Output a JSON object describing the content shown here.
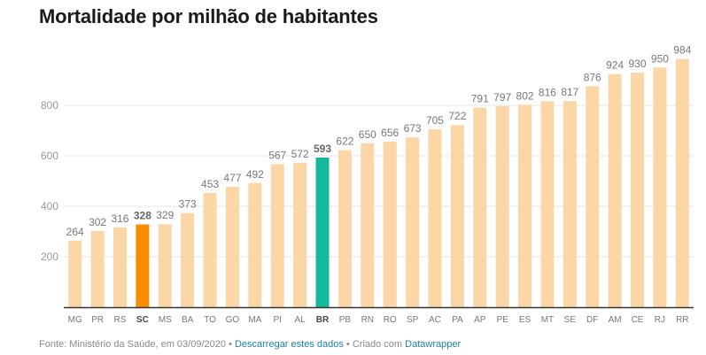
{
  "chart_data": {
    "type": "bar",
    "title": "Mortalidade por milhão de habitantes",
    "xlabel": "",
    "ylabel": "",
    "ylim": [
      0,
      1000
    ],
    "yticks": [
      200,
      400,
      600,
      800
    ],
    "grid": true,
    "categories": [
      "MG",
      "PR",
      "RS",
      "SC",
      "MS",
      "BA",
      "TO",
      "GO",
      "MA",
      "PI",
      "AL",
      "BR",
      "PB",
      "RN",
      "RO",
      "SP",
      "AC",
      "PA",
      "AP",
      "PE",
      "ES",
      "MT",
      "SE",
      "DF",
      "AM",
      "CE",
      "RJ",
      "RR"
    ],
    "values": [
      264,
      302,
      316,
      328,
      329,
      373,
      453,
      477,
      492,
      567,
      572,
      593,
      622,
      650,
      656,
      673,
      705,
      722,
      791,
      797,
      802,
      816,
      817,
      876,
      924,
      930,
      950,
      984
    ],
    "highlights": {
      "SC": "#f78c00",
      "BR": "#15b89a"
    },
    "default_color": "#fbd6a6",
    "bold_categories": [
      "SC",
      "BR"
    ]
  },
  "footer": {
    "source": "Fonte: Ministério da Saúde, em 03/09/2020",
    "separator": "•",
    "download_link": "Descarregar estes dados",
    "created_with": "Criado com",
    "tool_link": "Datawrapper"
  }
}
